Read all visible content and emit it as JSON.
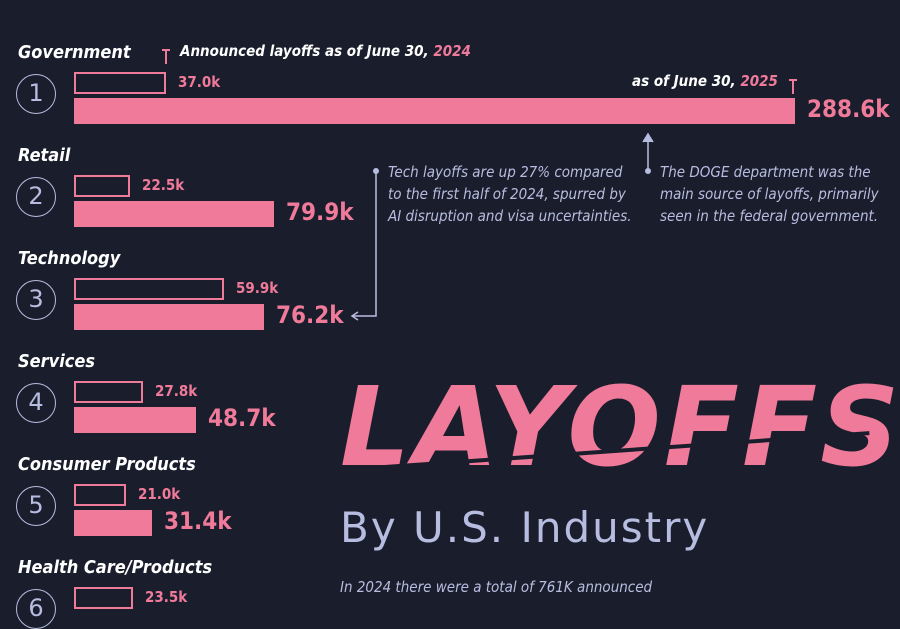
{
  "chart_data": {
    "type": "bar",
    "title": "LAYOFFS",
    "subtitle": "By U.S. Industry",
    "legend_2024_prefix": "Announced layoffs as of June 30,",
    "legend_2024_year": "2024",
    "legend_2025_prefix": "as of June 30,",
    "legend_2025_year": "2025",
    "categories": [
      "Government",
      "Retail",
      "Technology",
      "Services",
      "Consumer Products",
      "Health Care/Products"
    ],
    "ranks": [
      "1",
      "2",
      "3",
      "4",
      "5",
      "6"
    ],
    "series": [
      {
        "name": "2024",
        "values": [
          37.0,
          22.5,
          59.9,
          27.8,
          21.0,
          23.5
        ],
        "labels": [
          "37.0k",
          "22.5k",
          "59.9k",
          "27.8k",
          "21.0k",
          "23.5k"
        ]
      },
      {
        "name": "2025",
        "values": [
          288.6,
          79.9,
          76.2,
          48.7,
          31.4,
          null
        ],
        "labels": [
          "288.6k",
          "79.9k",
          "76.2k",
          "48.7k",
          "31.4k",
          ""
        ]
      }
    ],
    "xlim": [
      0,
      288.6
    ],
    "annotations": [
      "Tech layoffs are up 27% compared to the first half of 2024, spurred by AI disruption and visa uncertainties.",
      "The DOGE department was the main source of layoffs, primarily seen in the federal government."
    ],
    "intro_text": "In 2024 there were a total of 761K announced"
  },
  "colors": {
    "accent": "#f07a9a",
    "background": "#1a1e2c",
    "muted": "#b7bde0"
  }
}
